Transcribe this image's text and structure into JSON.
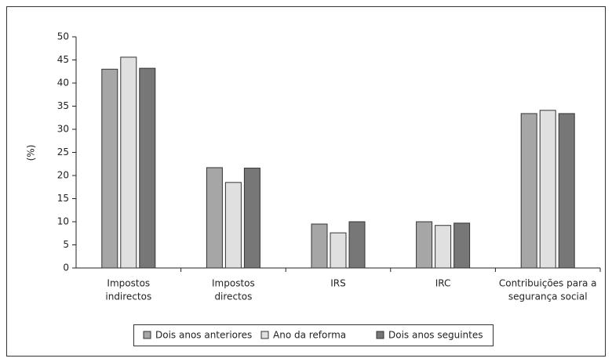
{
  "chart_data": {
    "type": "bar",
    "y_label": "(%)",
    "categories": [
      [
        "Impostos",
        "indirectos"
      ],
      [
        "Impostos",
        "directos"
      ],
      [
        "IRS"
      ],
      [
        "IRC"
      ],
      [
        "Contribuições para a",
        "segurança social"
      ]
    ],
    "series": [
      {
        "name": "Dois anos anteriores",
        "color": "#a6a6a6",
        "values": [
          43,
          21.7,
          9.5,
          10,
          33.4
        ]
      },
      {
        "name": "Ano da reforma",
        "color": "#e0e0e0",
        "values": [
          45.6,
          18.5,
          7.6,
          9.2,
          34.1
        ]
      },
      {
        "name": "Dois anos seguintes",
        "color": "#777777",
        "values": [
          43.2,
          21.6,
          10,
          9.7,
          33.4
        ]
      }
    ],
    "ylim": [
      0,
      50
    ],
    "yticks": [
      0,
      5,
      10,
      15,
      20,
      25,
      30,
      35,
      40,
      45,
      50
    ]
  }
}
